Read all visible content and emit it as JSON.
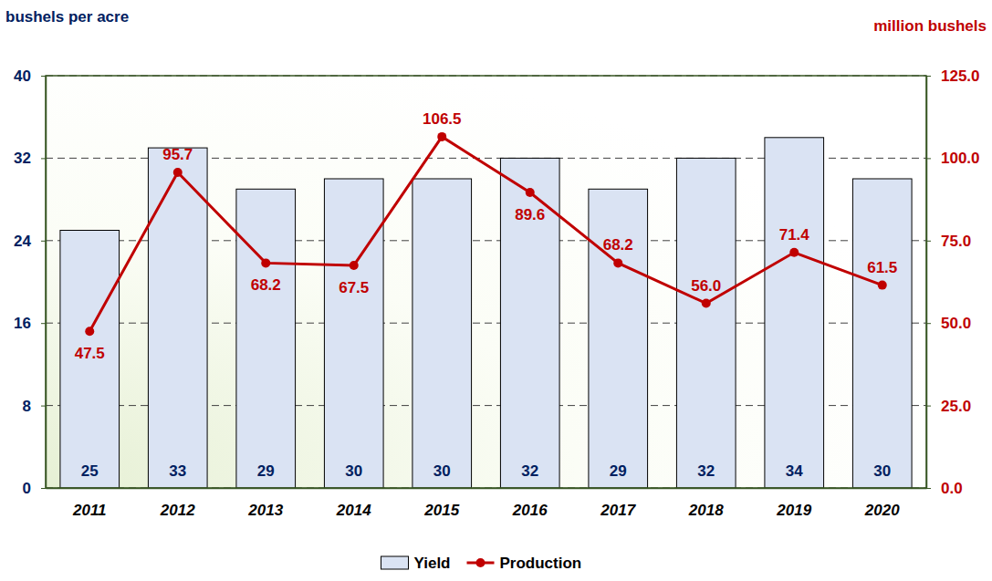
{
  "chart_data": {
    "type": "bar",
    "y_label": "bushels per acre",
    "y2_label": "million bushels",
    "categories": [
      "2011",
      "2012",
      "2013",
      "2014",
      "2015",
      "2016",
      "2017",
      "2018",
      "2019",
      "2020"
    ],
    "series": [
      {
        "name": "Yield",
        "type": "bar",
        "color": "#dae3f3",
        "values": [
          25,
          33,
          29,
          30,
          30,
          32,
          29,
          32,
          34,
          30
        ],
        "data_labels": true
      },
      {
        "name": "Production",
        "type": "line",
        "axis": "y2",
        "color": "#c00000",
        "marker": "circle",
        "values": [
          47.5,
          95.7,
          68.2,
          67.5,
          106.5,
          89.6,
          68.2,
          56.0,
          71.4,
          61.5
        ],
        "value_labels": [
          "47.5",
          "95.7",
          "68.2",
          "67.5",
          "106.5",
          "89.6",
          "68.2",
          "56.0",
          "71.4",
          "61.5"
        ],
        "data_labels": true
      }
    ],
    "ylim": [
      0,
      40
    ],
    "yticks": [
      0,
      8,
      16,
      24,
      32,
      40
    ],
    "y2lim": [
      0,
      125
    ],
    "y2ticks": [
      {
        "value": 0,
        "label": "0.0"
      },
      {
        "value": 25,
        "label": "25.0"
      },
      {
        "value": 50,
        "label": "50.0"
      },
      {
        "value": 75,
        "label": "75.0"
      },
      {
        "value": 100,
        "label": "100.0"
      },
      {
        "value": 125,
        "label": "125.0"
      }
    ],
    "grid": true,
    "legend": "bottom"
  }
}
